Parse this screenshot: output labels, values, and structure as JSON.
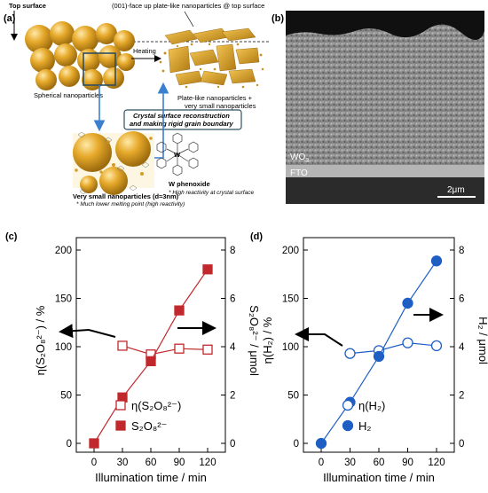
{
  "panel_a": {
    "label": "(a)",
    "top_surface": "Top surface",
    "top_caption": "(001)-face up plate-like nanoparticles @ top surface",
    "heating": "Heating",
    "spherical": "Spherical nanoparticles",
    "plate_like_1": "Plate-like nanoparticles +",
    "plate_like_2": "very small nanoparticles",
    "box_1": "Crystal surface reconstruction",
    "box_2": "and making rigid grain boundary",
    "very_small": "Very small nanoparticles (d≈3nm)",
    "melting": "* Much lower melting point (high reactivity)",
    "w_phenoxide": "W phenoxide",
    "reactivity": "* High reactivity at crystal surface",
    "w_symbol": "W"
  },
  "panel_b": {
    "label": "(b)",
    "wo3": "WO",
    "wo3_sub": "3",
    "fto": "FTO",
    "scale": "2μm"
  },
  "chart_data": [
    {
      "panel": "(c)",
      "type": "line",
      "x": [
        0,
        30,
        60,
        90,
        120
      ],
      "xlabel": "Illumination time / min",
      "xticks": [
        "0",
        "30",
        "60",
        "90",
        "120"
      ],
      "ylabel_left": "η(S₂O₈²⁻) / %",
      "ylabel_right": "S₂O₈²⁻ / μmol",
      "ylim_left": [
        0,
        200
      ],
      "ylim_right": [
        0,
        8
      ],
      "yticks_left": [
        "0",
        "50",
        "100",
        "150",
        "200"
      ],
      "yticks_right": [
        "0",
        "2",
        "4",
        "6",
        "8"
      ],
      "color": "#c0282d",
      "legend_placement": "bottom-right",
      "series": [
        {
          "name": "η(S₂O₈²⁻)",
          "axis": "left",
          "marker": "open-square",
          "x": [
            30,
            60,
            90,
            120
          ],
          "values": [
            101,
            92,
            98,
            97
          ]
        },
        {
          "name": "S₂O₈²⁻",
          "axis": "right",
          "marker": "filled-square",
          "x": [
            0,
            30,
            60,
            90,
            120
          ],
          "values": [
            0,
            1.9,
            3.4,
            5.5,
            7.2
          ]
        }
      ]
    },
    {
      "panel": "(d)",
      "type": "line",
      "x": [
        0,
        30,
        60,
        90,
        120
      ],
      "xlabel": "Illumination time / min",
      "xticks": [
        "0",
        "30",
        "60",
        "90",
        "120"
      ],
      "ylabel_left": "η(H₂) / %",
      "ylabel_right": "H₂ / μmol",
      "ylim_left": [
        0,
        200
      ],
      "ylim_right": [
        0,
        8
      ],
      "yticks_left": [
        "0",
        "50",
        "100",
        "150",
        "200"
      ],
      "yticks_right": [
        "0",
        "2",
        "4",
        "6",
        "8"
      ],
      "color": "#1f5fc4",
      "legend_placement": "bottom-right",
      "series": [
        {
          "name": "η(H₂)",
          "axis": "left",
          "marker": "open-circle",
          "x": [
            30,
            60,
            90,
            120
          ],
          "values": [
            93,
            96,
            104,
            101
          ]
        },
        {
          "name": "H₂",
          "axis": "right",
          "marker": "filled-circle",
          "x": [
            0,
            30,
            60,
            90,
            120
          ],
          "values": [
            0,
            1.7,
            3.6,
            5.8,
            7.55
          ]
        }
      ]
    }
  ]
}
